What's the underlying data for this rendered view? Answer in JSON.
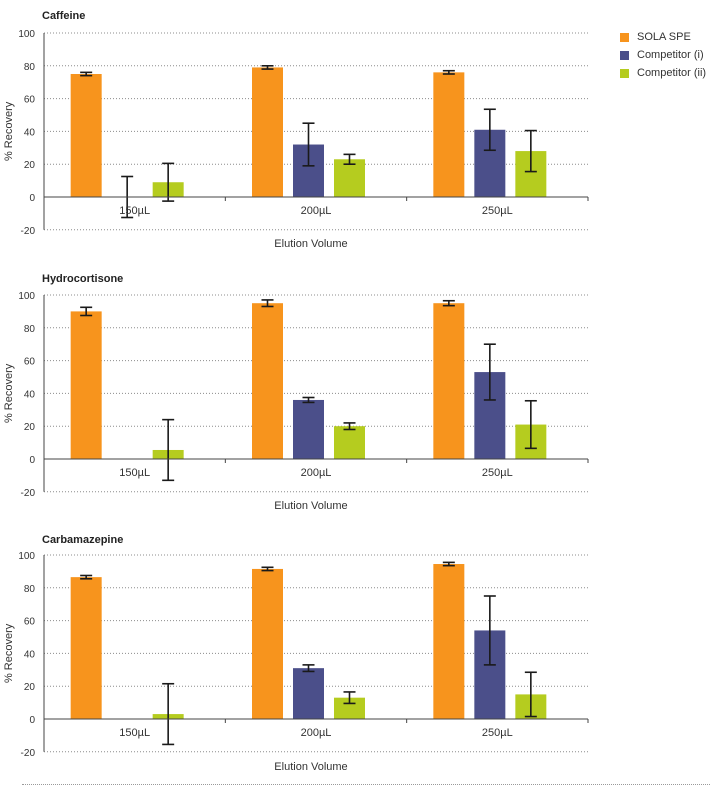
{
  "legend": [
    {
      "name": "SOLA SPE",
      "color": "#f7941d"
    },
    {
      "name": "Competitor (i)",
      "color": "#4b4f8a"
    },
    {
      "name": "Competitor (ii)",
      "color": "#b5cc1f"
    }
  ],
  "chart_data": [
    {
      "type": "bar",
      "title": "Caffeine",
      "xlabel": "Elution Volume",
      "ylabel": "% Recovery",
      "ylim": [
        -20,
        100
      ],
      "yticks": [
        100,
        80,
        60,
        40,
        20,
        0,
        -20
      ],
      "grid": true,
      "categories": [
        "150µL",
        "200µL",
        "250µL"
      ],
      "series": [
        {
          "name": "SOLA SPE",
          "values": [
            75,
            79,
            76
          ],
          "errors": [
            1,
            1,
            1
          ]
        },
        {
          "name": "Competitor (i)",
          "values": [
            0,
            32,
            41
          ],
          "errors": [
            12.5,
            13,
            12.5
          ]
        },
        {
          "name": "Competitor (ii)",
          "values": [
            9,
            23,
            28
          ],
          "errors": [
            11.5,
            3,
            12.5
          ]
        }
      ]
    },
    {
      "type": "bar",
      "title": "Hydrocortisone",
      "xlabel": "Elution Volume",
      "ylabel": "% Recovery",
      "ylim": [
        -20,
        100
      ],
      "yticks": [
        100,
        80,
        60,
        40,
        20,
        0,
        -20
      ],
      "grid": true,
      "categories": [
        "150µL",
        "200µL",
        "250µL"
      ],
      "series": [
        {
          "name": "SOLA SPE",
          "values": [
            90,
            95,
            95
          ],
          "errors": [
            2.5,
            2,
            1.5
          ]
        },
        {
          "name": "Competitor (i)",
          "values": [
            null,
            36,
            53
          ],
          "errors": [
            null,
            1.5,
            17
          ]
        },
        {
          "name": "Competitor (ii)",
          "values": [
            5.5,
            20,
            21
          ],
          "errors": [
            18.5,
            2,
            14.5
          ]
        }
      ]
    },
    {
      "type": "bar",
      "title": "Carbamazepine",
      "xlabel": "Elution Volume",
      "ylabel": "% Recovery",
      "ylim": [
        -20,
        100
      ],
      "yticks": [
        100,
        80,
        60,
        40,
        20,
        0,
        -20
      ],
      "grid": true,
      "categories": [
        "150µL",
        "200µL",
        "250µL"
      ],
      "series": [
        {
          "name": "SOLA SPE",
          "values": [
            86.5,
            91.5,
            94.5
          ],
          "errors": [
            1,
            1,
            1
          ]
        },
        {
          "name": "Competitor (i)",
          "values": [
            null,
            31,
            54
          ],
          "errors": [
            null,
            2,
            21
          ]
        },
        {
          "name": "Competitor (ii)",
          "values": [
            3,
            13,
            15
          ],
          "errors": [
            18.5,
            3.5,
            13.5
          ]
        }
      ]
    }
  ]
}
